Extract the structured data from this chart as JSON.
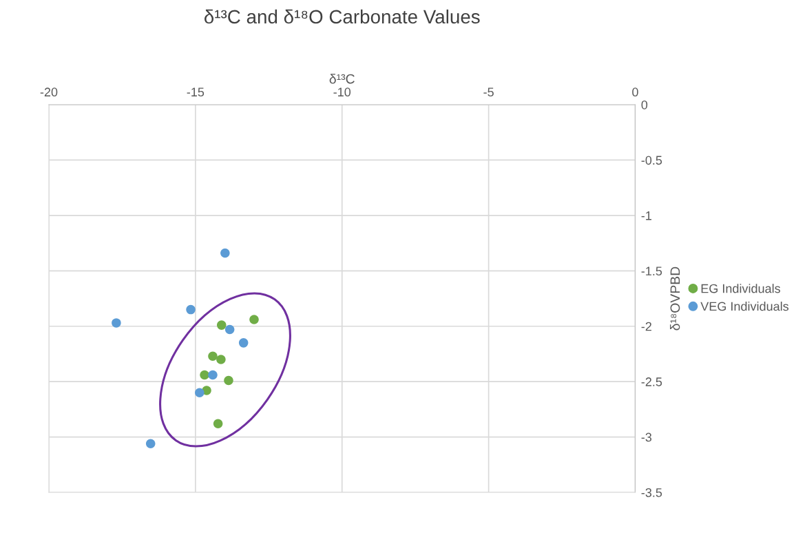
{
  "chart_data": {
    "type": "scatter",
    "title": "δ¹³C and δ¹⁸O Carbonate Values",
    "xlabel": "δ¹³C",
    "ylabel": "δ¹⁸OVPBD",
    "xlim": [
      -20,
      0
    ],
    "xticks": [
      -20,
      -15,
      -10,
      -5,
      0
    ],
    "ylim": [
      -3.5,
      0
    ],
    "yticks": [
      -3.5,
      -3,
      -2.5,
      -2,
      -1.5,
      -1,
      -0.5,
      0
    ],
    "grid": true,
    "legend": "right",
    "marker": "circle",
    "series": [
      {
        "name": "EG Individuals",
        "color": "#70ad47",
        "x": [
          -14.11,
          -13.0,
          -14.41,
          -14.13,
          -14.69,
          -13.87,
          -14.62,
          -14.23
        ],
        "values": [
          -1.99,
          -1.94,
          -2.27,
          -2.3,
          -2.44,
          -2.49,
          -2.58,
          -2.88
        ]
      },
      {
        "name": "VEG Individuals",
        "color": "#5b9bd5",
        "x": [
          -13.99,
          -15.16,
          -17.7,
          -13.83,
          -13.36,
          -14.41,
          -14.86,
          -16.53
        ],
        "values": [
          -1.34,
          -1.85,
          -1.97,
          -2.03,
          -2.15,
          -2.44,
          -2.6,
          -3.06
        ]
      }
    ]
  }
}
